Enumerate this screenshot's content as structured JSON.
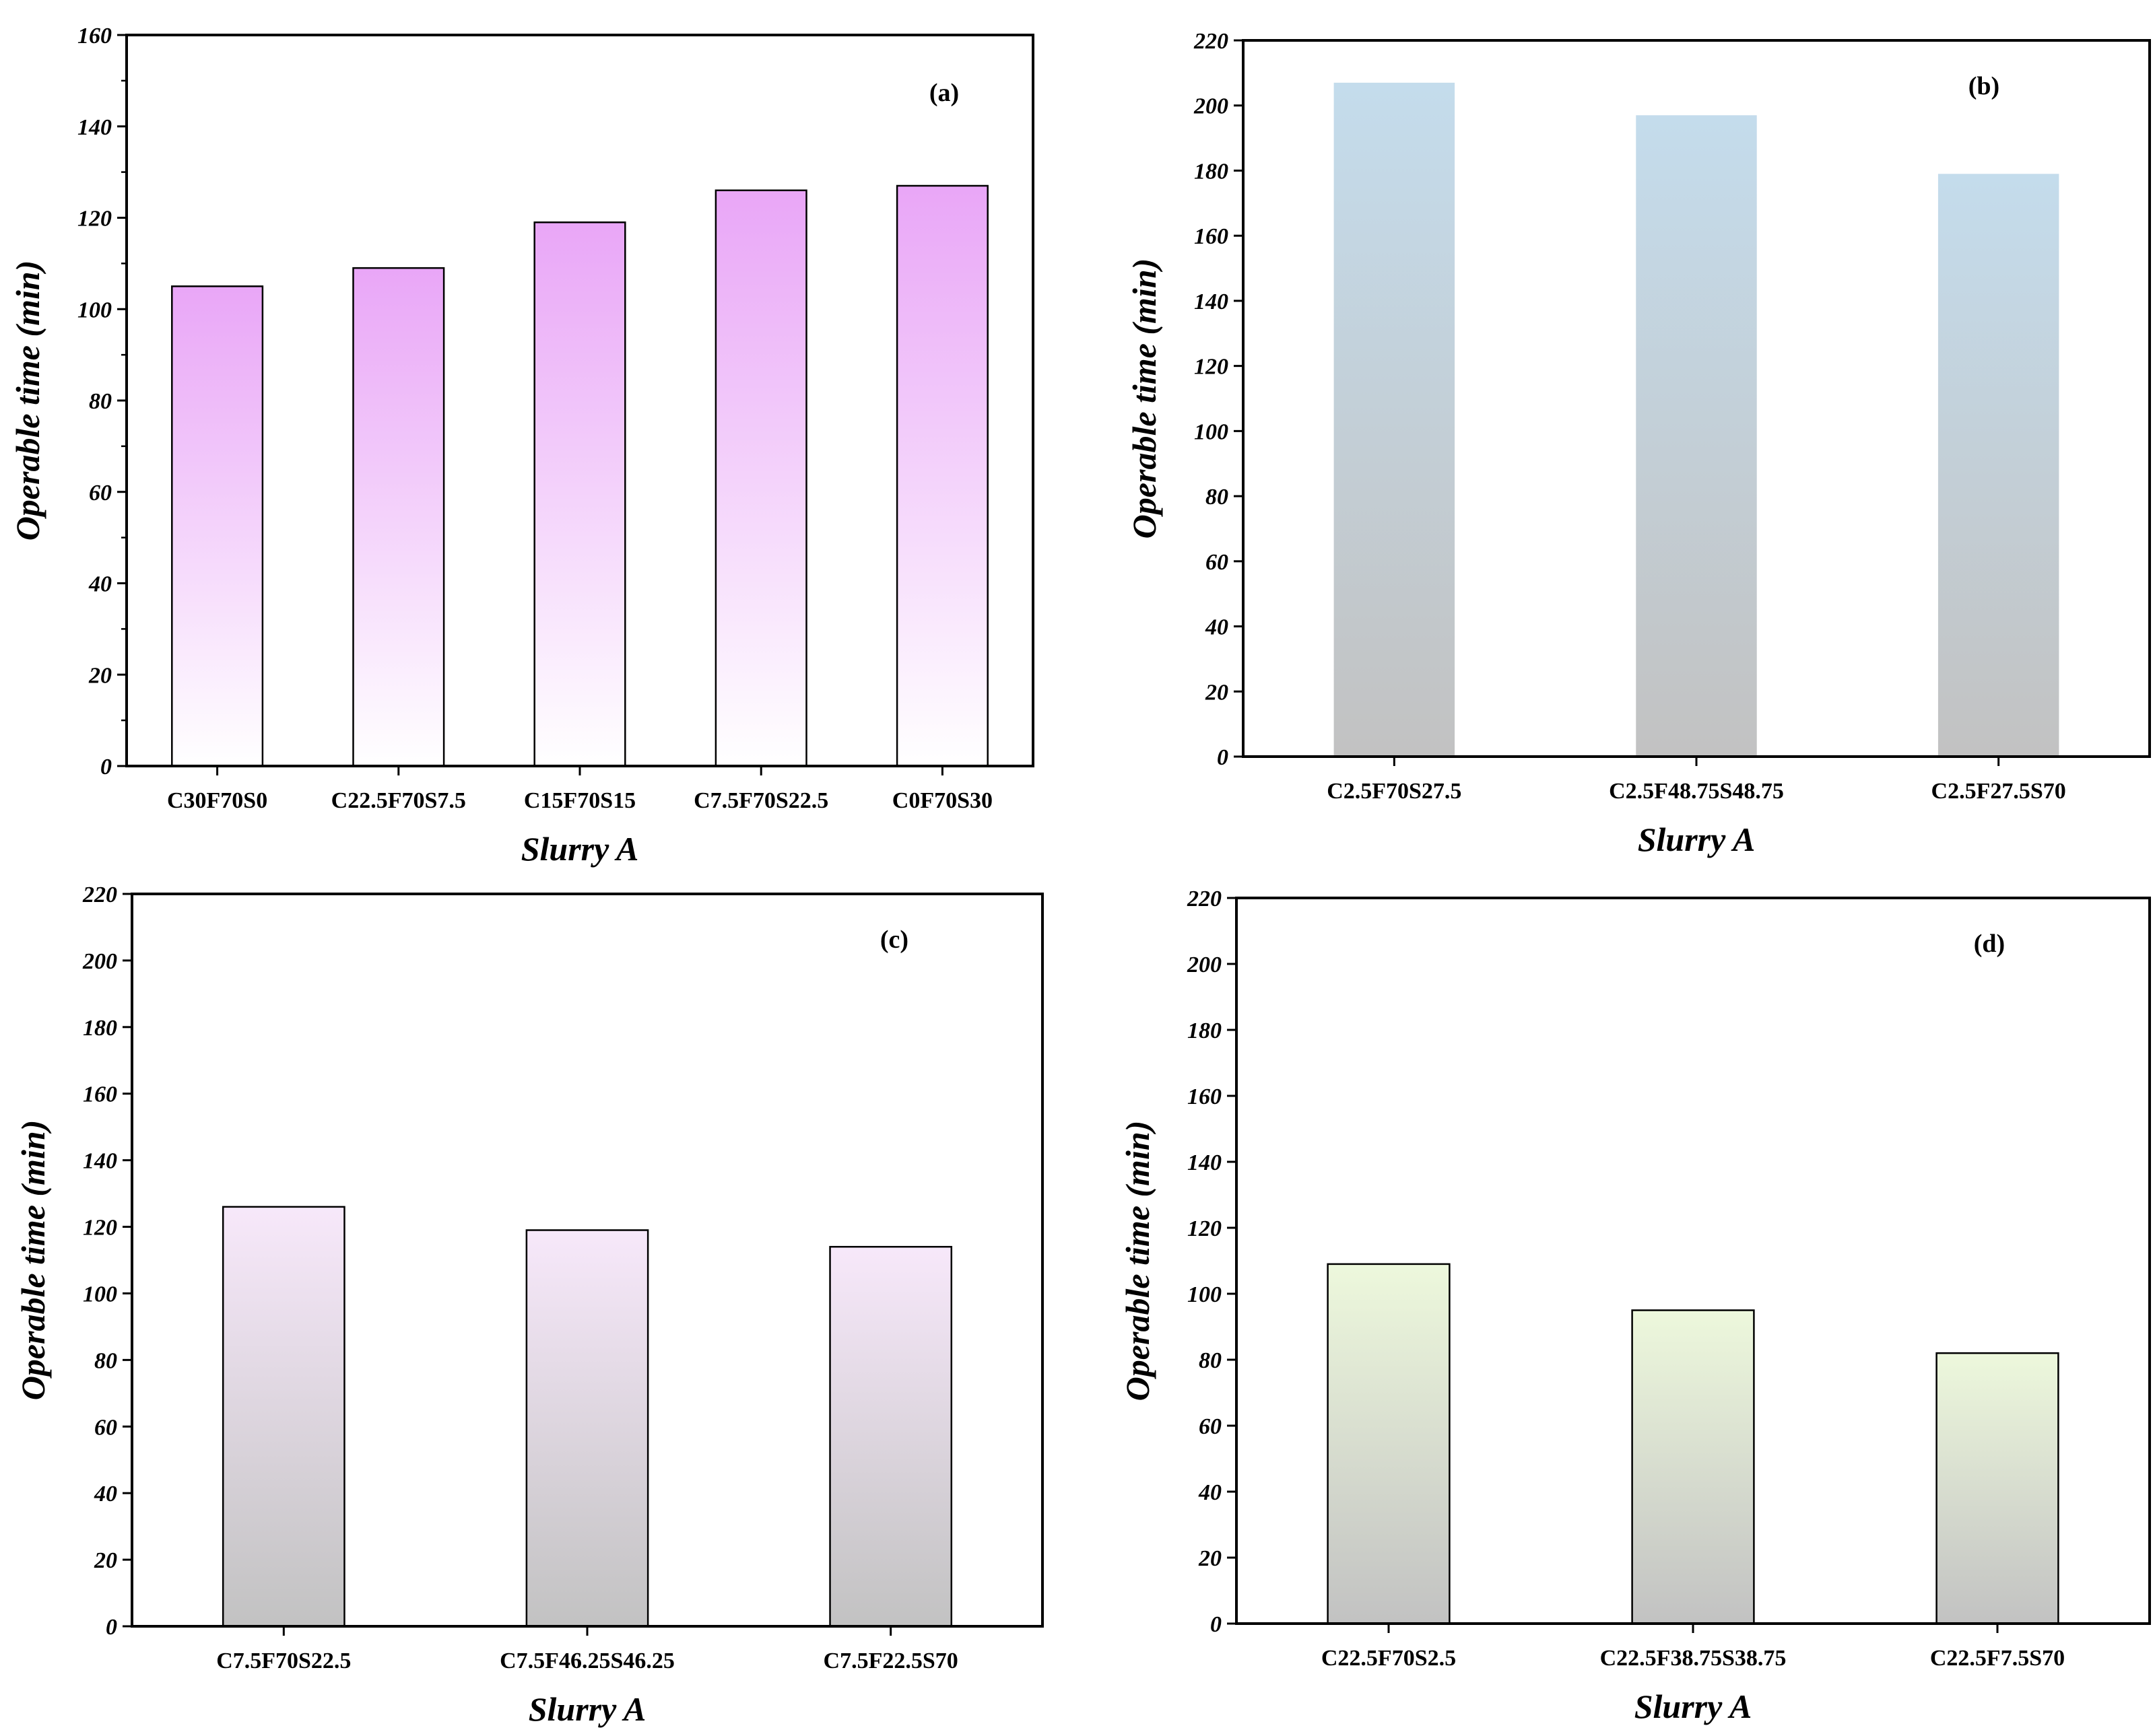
{
  "figure": {
    "ylabel": "Operable time (min)",
    "xlabel": "Slurry A"
  },
  "chart_data": [
    {
      "type": "bar",
      "panel": "(a)",
      "categories": [
        "C30F70S0",
        "C22.5F70S7.5",
        "C15F70S15",
        "C7.5F70S22.5",
        "C0F70S30"
      ],
      "values": [
        105,
        109,
        119,
        126,
        127
      ],
      "xlabel": "Slurry A",
      "ylabel": "Operable time (min)",
      "ylim": [
        0,
        160
      ],
      "yticks": [
        0,
        20,
        40,
        60,
        80,
        100,
        120,
        140,
        160
      ],
      "grid": false,
      "color_top": "#e9a6f7",
      "color_bottom": "#ffffff"
    },
    {
      "type": "bar",
      "panel": "(b)",
      "categories": [
        "C2.5F70S27.5",
        "C2.5F48.75S48.75",
        "C2.5F27.5S70"
      ],
      "values": [
        207,
        197,
        179
      ],
      "xlabel": "Slurry A",
      "ylabel": "Operable time (min)",
      "ylim": [
        0,
        220
      ],
      "yticks": [
        0,
        20,
        40,
        60,
        80,
        100,
        120,
        140,
        160,
        180,
        200,
        220
      ],
      "grid": false,
      "color_top": "#c4dcec",
      "color_bottom": "#c2c2c2"
    },
    {
      "type": "bar",
      "panel": "(c)",
      "categories": [
        "C7.5F70S22.5",
        "C7.5F46.25S46.25",
        "C7.5F22.5S70"
      ],
      "values": [
        126,
        119,
        114
      ],
      "xlabel": "Slurry A",
      "ylabel": "Operable time (min)",
      "ylim": [
        0,
        220
      ],
      "yticks": [
        0,
        20,
        40,
        60,
        80,
        100,
        120,
        140,
        160,
        180,
        200,
        220
      ],
      "grid": false,
      "color_top": "#f7e8fa",
      "color_bottom": "#c2c2c2"
    },
    {
      "type": "bar",
      "panel": "(d)",
      "categories": [
        "C22.5F70S2.5",
        "C22.5F38.75S38.75",
        "C22.5F7.5S70"
      ],
      "values": [
        109,
        95,
        82
      ],
      "xlabel": "Slurry A",
      "ylabel": "Operable time (min)",
      "ylim": [
        0,
        220
      ],
      "yticks": [
        0,
        20,
        40,
        60,
        80,
        100,
        120,
        140,
        160,
        180,
        200,
        220
      ],
      "grid": false,
      "color_top": "#edf8dc",
      "color_bottom": "#c2c2c2"
    }
  ]
}
